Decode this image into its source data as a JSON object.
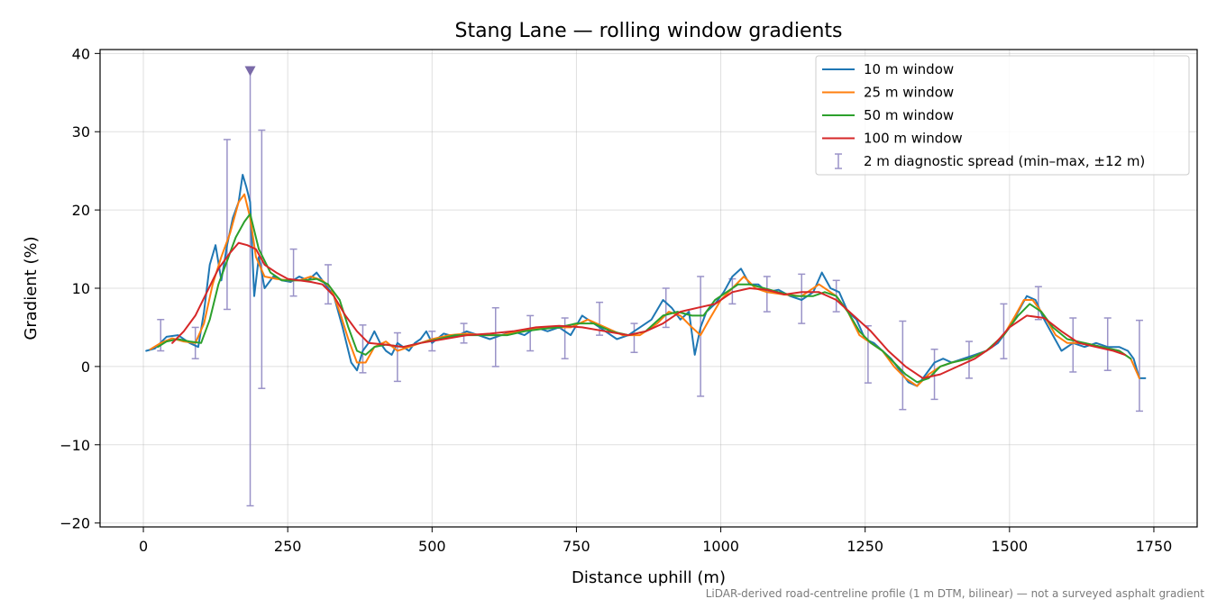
{
  "chart_data": {
    "type": "line",
    "title": "Stang Lane — rolling window gradients",
    "xlabel": "Distance uphill (m)",
    "ylabel": "Gradient (%)",
    "xlim": [
      -75,
      1825
    ],
    "ylim": [
      -20.5,
      40.5
    ],
    "xticks": [
      0,
      250,
      500,
      750,
      1000,
      1250,
      1500,
      1750
    ],
    "yticks": [
      -20,
      -10,
      0,
      10,
      20,
      30,
      40
    ],
    "ytick_labels": [
      "−20",
      "−10",
      "0",
      "10",
      "20",
      "30",
      "40"
    ],
    "grid": true,
    "legend_position": "top-right",
    "footnote": "LiDAR-derived road-centreline profile (1 m DTM, bilinear) — not a surveyed asphalt gradient",
    "series": [
      {
        "name": "10 m window",
        "color": "#1f77b4",
        "x": [
          5,
          20,
          40,
          60,
          80,
          95,
          105,
          115,
          125,
          135,
          145,
          155,
          165,
          172,
          178,
          185,
          192,
          200,
          210,
          225,
          240,
          255,
          270,
          285,
          300,
          315,
          330,
          345,
          360,
          370,
          380,
          390,
          400,
          410,
          420,
          430,
          440,
          450,
          460,
          470,
          480,
          490,
          500,
          520,
          540,
          560,
          580,
          600,
          620,
          640,
          660,
          680,
          700,
          720,
          740,
          760,
          780,
          800,
          820,
          840,
          860,
          880,
          900,
          915,
          930,
          945,
          955,
          965,
          975,
          990,
          1005,
          1020,
          1035,
          1050,
          1065,
          1080,
          1100,
          1120,
          1140,
          1160,
          1175,
          1190,
          1205,
          1220,
          1235,
          1250,
          1265,
          1280,
          1295,
          1310,
          1325,
          1340,
          1355,
          1370,
          1385,
          1400,
          1420,
          1440,
          1460,
          1480,
          1500,
          1515,
          1530,
          1545,
          1560,
          1575,
          1590,
          1610,
          1630,
          1650,
          1670,
          1690,
          1705,
          1715,
          1725,
          1735
        ],
        "values": [
          2.0,
          2.3,
          3.8,
          4.0,
          3.0,
          2.5,
          7.0,
          13.0,
          15.5,
          11.0,
          15.5,
          19.0,
          21.0,
          24.5,
          23.0,
          21.0,
          9.0,
          14.0,
          10.0,
          11.5,
          11.0,
          10.8,
          11.5,
          11.0,
          12.0,
          10.5,
          9.0,
          5.0,
          0.5,
          -0.5,
          2.0,
          3.0,
          4.5,
          3.0,
          2.0,
          1.5,
          3.0,
          2.5,
          2.0,
          3.0,
          3.5,
          4.5,
          3.0,
          4.2,
          3.8,
          4.5,
          4.0,
          3.5,
          4.0,
          4.5,
          4.0,
          5.0,
          4.5,
          5.0,
          4.0,
          6.5,
          5.5,
          4.5,
          3.5,
          4.0,
          5.0,
          6.0,
          8.5,
          7.5,
          6.0,
          7.0,
          1.5,
          5.0,
          7.0,
          8.0,
          9.5,
          11.5,
          12.5,
          10.5,
          10.5,
          9.5,
          9.8,
          9.0,
          8.5,
          9.5,
          12.0,
          10.0,
          9.5,
          7.0,
          6.0,
          3.5,
          3.0,
          2.0,
          1.0,
          -0.5,
          -2.0,
          -2.5,
          -1.0,
          0.5,
          1.0,
          0.5,
          1.0,
          1.5,
          2.0,
          3.0,
          5.0,
          7.0,
          9.0,
          8.5,
          6.0,
          4.0,
          2.0,
          3.0,
          2.5,
          3.0,
          2.5,
          2.5,
          2.0,
          1.0,
          -1.5,
          -1.5
        ]
      },
      {
        "name": "25 m window",
        "color": "#ff7f0e",
        "x": [
          12,
          30,
          50,
          70,
          90,
          105,
          120,
          135,
          150,
          165,
          175,
          185,
          195,
          210,
          230,
          250,
          270,
          290,
          310,
          325,
          340,
          355,
          370,
          385,
          400,
          420,
          440,
          460,
          480,
          500,
          530,
          560,
          590,
          620,
          650,
          680,
          710,
          740,
          770,
          800,
          830,
          860,
          890,
          910,
          930,
          950,
          965,
          980,
          1000,
          1020,
          1040,
          1060,
          1080,
          1110,
          1140,
          1170,
          1200,
          1220,
          1240,
          1260,
          1280,
          1300,
          1320,
          1340,
          1360,
          1380,
          1400,
          1430,
          1460,
          1490,
          1510,
          1525,
          1540,
          1560,
          1580,
          1600,
          1630,
          1660,
          1690,
          1710,
          1725
        ],
        "values": [
          2.2,
          3.0,
          3.6,
          3.2,
          3.0,
          5.5,
          10.5,
          14.0,
          17.0,
          21.0,
          22.0,
          19.0,
          14.0,
          11.5,
          11.2,
          11.0,
          11.0,
          11.5,
          11.0,
          10.0,
          7.0,
          3.5,
          0.5,
          0.5,
          2.5,
          3.2,
          2.0,
          2.5,
          3.0,
          3.5,
          4.0,
          4.2,
          4.0,
          4.0,
          4.5,
          4.8,
          5.0,
          5.0,
          6.0,
          5.0,
          4.0,
          4.0,
          5.5,
          7.0,
          6.5,
          5.0,
          4.0,
          6.0,
          8.5,
          10.0,
          11.5,
          10.0,
          9.5,
          9.2,
          9.0,
          10.5,
          9.0,
          7.0,
          4.0,
          3.0,
          2.0,
          0.0,
          -1.5,
          -2.5,
          -1.0,
          0.0,
          0.5,
          1.0,
          2.0,
          4.0,
          6.5,
          8.5,
          8.5,
          6.5,
          4.0,
          3.0,
          3.0,
          2.5,
          2.0,
          1.0,
          -1.5
        ]
      },
      {
        "name": "50 m window",
        "color": "#2ca02c",
        "x": [
          25,
          40,
          60,
          80,
          100,
          115,
          130,
          145,
          160,
          175,
          185,
          200,
          220,
          240,
          260,
          280,
          300,
          320,
          340,
          355,
          370,
          385,
          400,
          420,
          450,
          480,
          510,
          540,
          570,
          600,
          630,
          660,
          690,
          720,
          750,
          780,
          810,
          840,
          870,
          900,
          925,
          950,
          970,
          990,
          1010,
          1030,
          1050,
          1075,
          1100,
          1130,
          1160,
          1180,
          1200,
          1220,
          1240,
          1260,
          1280,
          1300,
          1320,
          1340,
          1360,
          1380,
          1400,
          1430,
          1460,
          1490,
          1515,
          1535,
          1555,
          1575,
          1600,
          1630,
          1660,
          1690,
          1710
        ],
        "values": [
          2.5,
          3.2,
          3.5,
          3.2,
          3.0,
          6.0,
          10.5,
          13.5,
          16.5,
          18.5,
          19.5,
          15.0,
          12.0,
          11.0,
          11.0,
          11.0,
          11.2,
          10.5,
          8.5,
          5.0,
          2.0,
          1.5,
          2.5,
          2.8,
          2.5,
          3.0,
          3.5,
          4.0,
          4.0,
          4.0,
          4.0,
          4.5,
          4.8,
          5.0,
          5.5,
          5.5,
          4.5,
          4.0,
          4.5,
          6.5,
          7.0,
          6.5,
          6.5,
          8.5,
          9.5,
          10.5,
          10.5,
          10.0,
          9.5,
          9.0,
          9.0,
          9.5,
          9.0,
          7.0,
          4.5,
          3.0,
          2.0,
          0.5,
          -1.0,
          -2.0,
          -1.5,
          0.0,
          0.5,
          1.0,
          2.0,
          4.0,
          6.5,
          8.0,
          7.0,
          5.0,
          3.5,
          3.0,
          2.5,
          2.0,
          1.0
        ]
      },
      {
        "name": "100 m window",
        "color": "#d62728",
        "x": [
          50,
          70,
          90,
          110,
          130,
          150,
          165,
          180,
          195,
          210,
          230,
          250,
          270,
          290,
          310,
          330,
          350,
          370,
          390,
          420,
          450,
          480,
          520,
          560,
          600,
          640,
          680,
          720,
          760,
          800,
          840,
          870,
          900,
          930,
          960,
          990,
          1020,
          1050,
          1080,
          1110,
          1140,
          1170,
          1200,
          1230,
          1260,
          1290,
          1320,
          1350,
          1380,
          1410,
          1440,
          1470,
          1500,
          1530,
          1560,
          1590,
          1620,
          1650,
          1680,
          1700
        ],
        "values": [
          3.0,
          4.5,
          6.5,
          9.5,
          12.5,
          14.5,
          15.8,
          15.5,
          15.0,
          13.0,
          12.0,
          11.2,
          11.0,
          10.8,
          10.5,
          9.0,
          6.5,
          4.5,
          3.0,
          2.8,
          2.5,
          3.0,
          3.5,
          4.0,
          4.2,
          4.5,
          5.0,
          5.2,
          5.0,
          4.5,
          4.0,
          4.5,
          5.5,
          7.0,
          7.5,
          8.0,
          9.5,
          10.0,
          9.8,
          9.2,
          9.5,
          9.5,
          8.5,
          6.5,
          4.5,
          2.0,
          0.0,
          -1.5,
          -1.0,
          0.0,
          1.0,
          2.5,
          5.0,
          6.5,
          6.2,
          4.5,
          3.0,
          2.5,
          2.0,
          1.5
        ]
      }
    ],
    "spread": {
      "name": "2 m diagnostic spread (min–max, ±12 m)",
      "color": "#9a93c8",
      "points": [
        {
          "x": 30,
          "min": 2.0,
          "max": 6.0
        },
        {
          "x": 90,
          "min": 1.0,
          "max": 5.0
        },
        {
          "x": 145,
          "min": 7.3,
          "max": 29.0
        },
        {
          "x": 185,
          "min": -17.8,
          "max": 37.8,
          "clipped": true
        },
        {
          "x": 205,
          "min": -2.8,
          "max": 30.2
        },
        {
          "x": 260,
          "min": 9.0,
          "max": 15.0
        },
        {
          "x": 320,
          "min": 8.0,
          "max": 13.0
        },
        {
          "x": 380,
          "min": -0.8,
          "max": 5.3
        },
        {
          "x": 440,
          "min": -1.9,
          "max": 4.3
        },
        {
          "x": 500,
          "min": 2.0,
          "max": 4.5
        },
        {
          "x": 555,
          "min": 3.0,
          "max": 5.5
        },
        {
          "x": 610,
          "min": 0.0,
          "max": 7.5
        },
        {
          "x": 670,
          "min": 2.0,
          "max": 6.5
        },
        {
          "x": 730,
          "min": 1.0,
          "max": 6.2
        },
        {
          "x": 790,
          "min": 4.0,
          "max": 8.2
        },
        {
          "x": 850,
          "min": 1.8,
          "max": 5.5
        },
        {
          "x": 905,
          "min": 5.0,
          "max": 10.0
        },
        {
          "x": 965,
          "min": -3.8,
          "max": 11.5
        },
        {
          "x": 1020,
          "min": 8.0,
          "max": 11.2
        },
        {
          "x": 1080,
          "min": 7.0,
          "max": 11.5
        },
        {
          "x": 1140,
          "min": 5.5,
          "max": 11.8
        },
        {
          "x": 1200,
          "min": 7.0,
          "max": 11.0
        },
        {
          "x": 1255,
          "min": -2.1,
          "max": 5.2
        },
        {
          "x": 1315,
          "min": -5.5,
          "max": 5.8
        },
        {
          "x": 1370,
          "min": -4.2,
          "max": 2.2
        },
        {
          "x": 1430,
          "min": -1.5,
          "max": 3.2
        },
        {
          "x": 1490,
          "min": 1.0,
          "max": 8.0
        },
        {
          "x": 1550,
          "min": 6.0,
          "max": 10.2
        },
        {
          "x": 1610,
          "min": -0.7,
          "max": 6.2
        },
        {
          "x": 1670,
          "min": -0.5,
          "max": 6.2
        },
        {
          "x": 1725,
          "min": -5.7,
          "max": 5.9
        }
      ]
    }
  }
}
